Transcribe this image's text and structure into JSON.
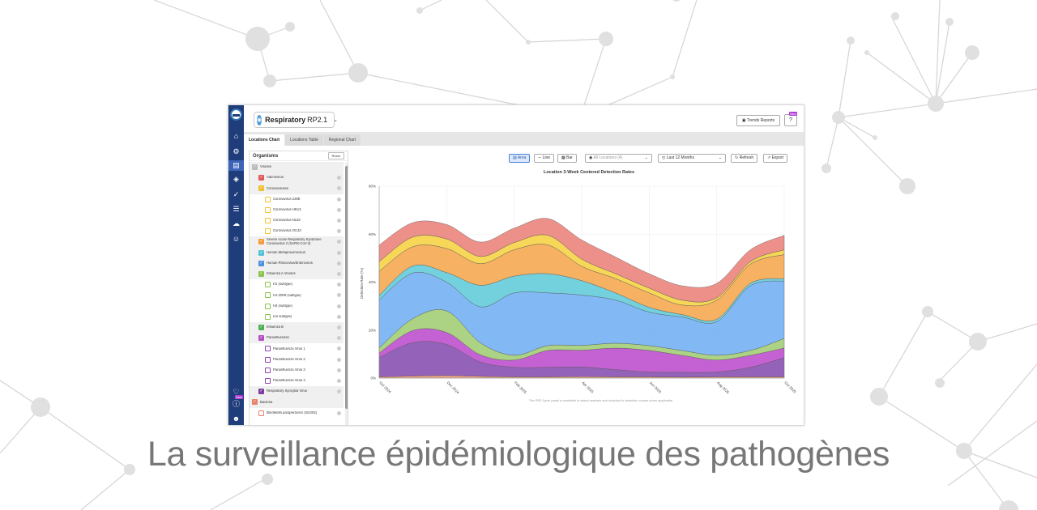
{
  "app": {
    "product_name": "Respiratory",
    "product_version": "RP2.1",
    "trends_reports": "Trends Reports",
    "help_badge": "New",
    "rail_badge": "New"
  },
  "tabs": [
    {
      "label": "Locations Chart",
      "active": true
    },
    {
      "label": "Locations Table",
      "active": false
    },
    {
      "label": "Regional Chart",
      "active": false
    }
  ],
  "rail_icons": [
    "home-icon",
    "settings-icon",
    "chart-icon",
    "cube-icon",
    "check-icon",
    "list-icon",
    "cloud-icon",
    "users-icon",
    "bell-icon",
    "info-icon",
    "user-icon"
  ],
  "organisms": {
    "title": "Organisms",
    "reset": "Reset",
    "items": [
      {
        "label": "Viruses",
        "level": 0,
        "color": "#bbbbbb",
        "checked": true
      },
      {
        "label": "Adenovirus",
        "level": 1,
        "color": "#e05a5a",
        "checked": true
      },
      {
        "label": "Coronaviruses",
        "level": 1,
        "color": "#f2c12e",
        "checked": true
      },
      {
        "label": "Coronavirus 229E",
        "level": 2,
        "color": "#f2c12e",
        "checked": false
      },
      {
        "label": "Coronavirus HKU1",
        "level": 2,
        "color": "#f2c12e",
        "checked": false
      },
      {
        "label": "Coronavirus NL63",
        "level": 2,
        "color": "#f2c12e",
        "checked": false
      },
      {
        "label": "Coronavirus OC43",
        "level": 2,
        "color": "#f2c12e",
        "checked": false
      },
      {
        "label": "Severe Acute Respiratory Syndrome Coronavirus 2 (SARS-CoV-2)",
        "level": 1,
        "color": "#f39a3c",
        "checked": true
      },
      {
        "label": "Human Metapneumovirus",
        "level": 1,
        "color": "#4ec3d9",
        "checked": true
      },
      {
        "label": "Human Rhinovirus/Enterovirus",
        "level": 1,
        "color": "#4a8fe0",
        "checked": true
      },
      {
        "label": "Influenza A Viruses",
        "level": 1,
        "color": "#8bc34a",
        "checked": true
      },
      {
        "label": "H1 (subtype)",
        "level": 2,
        "color": "#8bc34a",
        "checked": false
      },
      {
        "label": "H1-2009 (subtype)",
        "level": 2,
        "color": "#8bc34a",
        "checked": false
      },
      {
        "label": "H3 (subtype)",
        "level": 2,
        "color": "#8bc34a",
        "checked": false
      },
      {
        "label": "(no subtype)",
        "level": 2,
        "color": "#8bc34a",
        "checked": false
      },
      {
        "label": "Influenza B",
        "level": 1,
        "color": "#4caf50",
        "checked": true
      },
      {
        "label": "Parainfluenzas",
        "level": 1,
        "color": "#b54fc4",
        "checked": true
      },
      {
        "label": "Parainfluenza Virus 1",
        "level": 2,
        "color": "#8e44ad",
        "checked": false
      },
      {
        "label": "Parainfluenza Virus 2",
        "level": 2,
        "color": "#8e44ad",
        "checked": false
      },
      {
        "label": "Parainfluenza Virus 3",
        "level": 2,
        "color": "#8e44ad",
        "checked": false
      },
      {
        "label": "Parainfluenza Virus 4",
        "level": 2,
        "color": "#8e44ad",
        "checked": false
      },
      {
        "label": "Respiratory Syncytial Virus",
        "level": 1,
        "color": "#7b3fa0",
        "checked": true
      },
      {
        "label": "Bacteria",
        "level": 0,
        "color": "#e8836b",
        "checked": true
      },
      {
        "label": "Bordetella parapertussis (IS1001)",
        "level": 1,
        "color": "#e8836b",
        "checked": false
      }
    ]
  },
  "toolbar": {
    "area": "Area",
    "line": "Line",
    "bar": "Bar",
    "locations": "All Locations (4)",
    "period": "Last 12 Months",
    "refresh": "Refresh",
    "export": "Export"
  },
  "chart_note": "The RP2.1plus panel is available in select markets and included in detection counts when applicable.",
  "chart_data": {
    "type": "area",
    "title": "Location 3-Week Centered Detection Rates",
    "ylabel": "Detection Rate (%)",
    "xlabel": "",
    "ylim": [
      0,
      80
    ],
    "yticks": [
      "0%",
      "20%",
      "40%",
      "60%",
      "80%"
    ],
    "x_tick_labels": [
      "Oct 2024",
      "Dec 2024",
      "Feb 2025",
      "Apr 2025",
      "Jun 2025",
      "Aug 2025",
      "Oct 2025"
    ],
    "x": [
      "2024-10",
      "2024-11",
      "2024-12",
      "2025-01",
      "2025-02",
      "2025-03",
      "2025-04",
      "2025-05",
      "2025-06",
      "2025-07",
      "2025-08",
      "2025-09",
      "2025-10"
    ],
    "stacked": true,
    "series": [
      {
        "color": "#f4a582",
        "values": [
          0.5,
          0.8,
          1,
          0.7,
          0.5,
          0.5,
          0.6,
          0.5,
          0.5,
          0.4,
          0.5,
          0.5,
          0.5
        ]
      },
      {
        "color": "#8e5bb5",
        "values": [
          8,
          14,
          13,
          6,
          4,
          4,
          4,
          3,
          2,
          2,
          2,
          4,
          8
        ]
      },
      {
        "color": "#c25ad1",
        "values": [
          2,
          5,
          5,
          3,
          3,
          7,
          7,
          9,
          9,
          7,
          5,
          5,
          4
        ]
      },
      {
        "color": "#a8d17d",
        "values": [
          2,
          5,
          9,
          5,
          2,
          2,
          2,
          2,
          2,
          2,
          2,
          2,
          4
        ]
      },
      {
        "color": "#7bb4f2",
        "values": [
          20,
          19,
          12,
          15,
          26,
          22,
          21,
          18,
          14,
          14,
          14,
          27,
          24
        ]
      },
      {
        "color": "#6ccfdc",
        "values": [
          2,
          3,
          4,
          9,
          7,
          8,
          6,
          3,
          2,
          1,
          1,
          1,
          1
        ]
      },
      {
        "color": "#f5ad5b",
        "values": [
          10,
          8,
          10,
          9,
          11,
          12,
          6,
          6,
          6,
          4,
          8,
          8,
          10
        ]
      },
      {
        "color": "#f5d54f",
        "values": [
          4,
          4,
          4,
          3,
          3,
          4,
          3,
          2,
          2,
          2,
          1,
          1,
          2
        ]
      },
      {
        "color": "#ec8a84",
        "values": [
          7,
          6,
          6,
          6,
          6,
          7,
          8,
          7,
          6,
          6,
          6,
          5,
          6
        ]
      }
    ]
  },
  "caption": "La surveillance épidémiologique des pathogènes"
}
